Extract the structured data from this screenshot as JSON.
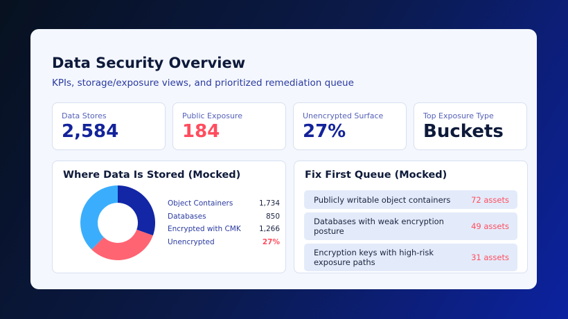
{
  "header": {
    "title": "Data Security Overview",
    "subtitle": "KPIs, storage/exposure views, and prioritized remediation queue"
  },
  "kpis": [
    {
      "label": "Data Stores",
      "value": "2,584",
      "color": "#13239a"
    },
    {
      "label": "Public Exposure",
      "value": "184",
      "color": "#ff4d5e"
    },
    {
      "label": "Unencrypted Surface",
      "value": "27%",
      "color": "#13239a"
    },
    {
      "label": "Top Exposure Type",
      "value": "Buckets",
      "color": "#0e1a3a"
    }
  ],
  "storage": {
    "title": "Where Data Is Stored (Mocked)",
    "legend": [
      {
        "name": "Object Containers",
        "value": "1,734"
      },
      {
        "name": "Databases",
        "value": "850"
      },
      {
        "name": "Encrypted with CMK",
        "value": "1,266"
      },
      {
        "name": "Unencrypted",
        "value": "27%"
      }
    ],
    "donut": [
      {
        "fraction": 0.305,
        "color": "#1226a6"
      },
      {
        "fraction": 0.318,
        "color": "#ff6472"
      },
      {
        "fraction": 0.377,
        "color": "#3aaefc"
      }
    ]
  },
  "queue": {
    "title": "Fix First Queue (Mocked)",
    "items": [
      {
        "label": "Publicly writable object containers",
        "count": "72 assets"
      },
      {
        "label": "Databases with weak encryption posture",
        "count": "49 assets"
      },
      {
        "label": "Encryption keys with high-risk exposure paths",
        "count": "31 assets"
      }
    ]
  }
}
